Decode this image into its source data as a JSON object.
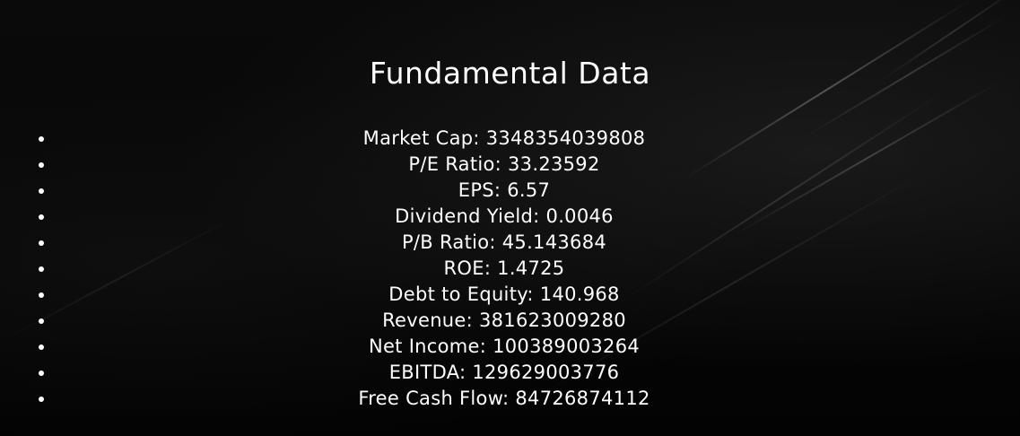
{
  "title": "Fundamental Data",
  "items": [
    "Market Cap: 3348354039808",
    "P/E Ratio: 33.23592",
    "EPS: 6.57",
    "Dividend Yield: 0.0046",
    "P/B Ratio: 45.143684",
    "ROE: 1.4725",
    "Debt to Equity: 140.968",
    "Revenue: 381623009280",
    "Net Income: 100389003264",
    "EBITDA: 129629003776",
    "Free Cash Flow: 84726874112"
  ]
}
